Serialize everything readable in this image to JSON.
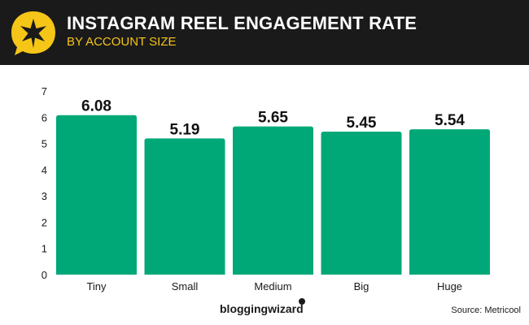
{
  "header": {
    "title": "INSTAGRAM REEL ENGAGEMENT RATE",
    "subtitle": "BY ACCOUNT SIZE",
    "background_color": "#1a1a1a",
    "subtitle_color": "#f5c518",
    "logo_icon": "star-speech-bubble-icon"
  },
  "chart_data": {
    "type": "bar",
    "title": "INSTAGRAM REEL ENGAGEMENT RATE",
    "subtitle": "BY ACCOUNT SIZE",
    "categories": [
      "Tiny",
      "Small",
      "Medium",
      "Big",
      "Huge"
    ],
    "values": [
      6.08,
      5.19,
      5.65,
      5.45,
      5.54
    ],
    "value_labels": [
      "6.08",
      "5.19",
      "5.65",
      "5.45",
      "5.54"
    ],
    "xlabel": "",
    "ylabel": "",
    "ylim": [
      0,
      7
    ],
    "yticks": [
      0,
      1,
      2,
      3,
      4,
      5,
      6,
      7
    ],
    "grid": false,
    "bar_color": "#00a878"
  },
  "footer": {
    "brand": "bloggingwizard",
    "source": "Source: Metricool"
  }
}
